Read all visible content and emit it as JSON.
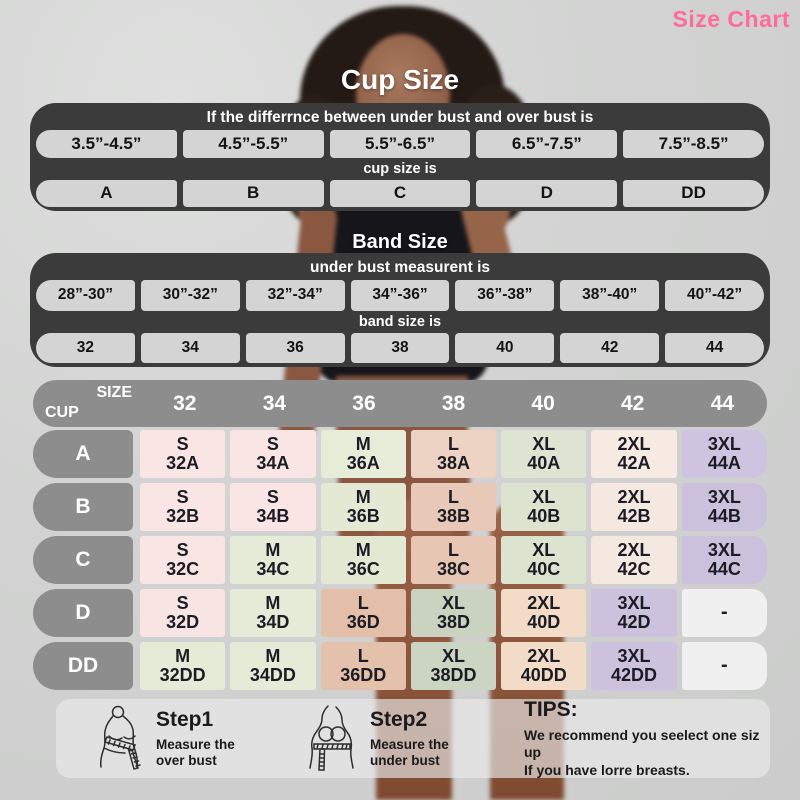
{
  "page": {
    "title": "Size Chart",
    "accent_color": "#ff6b9a",
    "background_color": "#d2d3d2"
  },
  "cup_size_section": {
    "title": "Cup Size",
    "header": "If the differrnce between under bust and over bust is",
    "ranges": [
      "3.5”-4.5”",
      "4.5”-5.5”",
      "5.5”-6.5”",
      "6.5”-7.5”",
      "7.5”-8.5”"
    ],
    "subheader": "cup size is",
    "cups": [
      "A",
      "B",
      "C",
      "D",
      "DD"
    ]
  },
  "band_size_section": {
    "title": "Band Size",
    "header": "under bust measurent is",
    "ranges": [
      "28”-30”",
      "30”-32”",
      "32”-34”",
      "34”-36”",
      "36”-38”",
      "38”-40”",
      "40”-42”"
    ],
    "subheader": "band size is",
    "bands": [
      "32",
      "34",
      "36",
      "38",
      "40",
      "42",
      "44"
    ]
  },
  "size_grid": {
    "corner": {
      "top": "SIZE",
      "bottom": "CUP"
    },
    "columns": [
      "32",
      "34",
      "36",
      "38",
      "40",
      "42",
      "44"
    ],
    "rows": [
      {
        "cup": "A",
        "cells": [
          {
            "size": "S",
            "code": "32A",
            "color": "#f9e6e4"
          },
          {
            "size": "S",
            "code": "34A",
            "color": "#f9e6e4"
          },
          {
            "size": "M",
            "code": "36A",
            "color": "#e7ecd9"
          },
          {
            "size": "L",
            "code": "38A",
            "color": "#ecd3c4"
          },
          {
            "size": "XL",
            "code": "40A",
            "color": "#dde5d2"
          },
          {
            "size": "2XL",
            "code": "42A",
            "color": "#f6eae3"
          },
          {
            "size": "3XL",
            "code": "44A",
            "color": "#cfc4e0"
          }
        ]
      },
      {
        "cup": "B",
        "cells": [
          {
            "size": "S",
            "code": "32B",
            "color": "#f9e6e4"
          },
          {
            "size": "S",
            "code": "34B",
            "color": "#f9e6e4"
          },
          {
            "size": "M",
            "code": "36B",
            "color": "#e4e9d4"
          },
          {
            "size": "L",
            "code": "38B",
            "color": "#e8c9b8"
          },
          {
            "size": "XL",
            "code": "40B",
            "color": "#dce4d0"
          },
          {
            "size": "2XL",
            "code": "42B",
            "color": "#f5e8e0"
          },
          {
            "size": "3XL",
            "code": "44B",
            "color": "#ccc1dd"
          }
        ]
      },
      {
        "cup": "C",
        "cells": [
          {
            "size": "S",
            "code": "32C",
            "color": "#f9e6e4"
          },
          {
            "size": "M",
            "code": "34C",
            "color": "#e6ebd7"
          },
          {
            "size": "M",
            "code": "36C",
            "color": "#e2e8d2"
          },
          {
            "size": "L",
            "code": "38C",
            "color": "#e7c6b4"
          },
          {
            "size": "XL",
            "code": "40C",
            "color": "#dce4d0"
          },
          {
            "size": "2XL",
            "code": "42C",
            "color": "#f5e8e0"
          },
          {
            "size": "3XL",
            "code": "44C",
            "color": "#ccc1dd"
          }
        ]
      },
      {
        "cup": "D",
        "cells": [
          {
            "size": "S",
            "code": "32D",
            "color": "#f8e4e2"
          },
          {
            "size": "M",
            "code": "34D",
            "color": "#e6ebd7"
          },
          {
            "size": "L",
            "code": "36D",
            "color": "#e3bfa9"
          },
          {
            "size": "XL",
            "code": "38D",
            "color": "#c9d3c0"
          },
          {
            "size": "2XL",
            "code": "40D",
            "color": "#f2dcc8"
          },
          {
            "size": "3XL",
            "code": "42D",
            "color": "#cdc2de"
          },
          {
            "size": "-",
            "code": "",
            "color": "#f0f0f0"
          }
        ]
      },
      {
        "cup": "DD",
        "cells": [
          {
            "size": "M",
            "code": "32DD",
            "color": "#e6ebd7"
          },
          {
            "size": "M",
            "code": "34DD",
            "color": "#e6ebd7"
          },
          {
            "size": "L",
            "code": "36DD",
            "color": "#e4c1ab"
          },
          {
            "size": "XL",
            "code": "38DD",
            "color": "#ccd5c2"
          },
          {
            "size": "2XL",
            "code": "40DD",
            "color": "#f2dcc8"
          },
          {
            "size": "3XL",
            "code": "42DD",
            "color": "#cdc2de"
          },
          {
            "size": "-",
            "code": "",
            "color": "#f0f0f0"
          }
        ]
      }
    ]
  },
  "footer": {
    "step1": {
      "title": "Step1",
      "lines": [
        "Measure the",
        "over bust"
      ]
    },
    "step2": {
      "title": "Step2",
      "lines": [
        "Measure the",
        "under bust"
      ]
    },
    "tips": {
      "title": "TIPS:",
      "lines": [
        "We recommend you seelect one siz up",
        "If you have lorre breasts."
      ]
    }
  },
  "icons": {
    "step1": "measure-over-bust-icon",
    "step2": "measure-under-bust-icon"
  },
  "chart_data": [
    {
      "type": "table",
      "title": "Cup Size",
      "header": "If the differrnce between under bust and over bust is",
      "columns": [
        "3.5”-4.5”",
        "4.5”-5.5”",
        "5.5”-6.5”",
        "6.5”-7.5”",
        "7.5”-8.5”"
      ],
      "row_label": "cup size is",
      "values": [
        "A",
        "B",
        "C",
        "D",
        "DD"
      ]
    },
    {
      "type": "table",
      "title": "Band Size",
      "header": "under bust measurent is",
      "columns": [
        "28”-30”",
        "30”-32”",
        "32”-34”",
        "34”-36”",
        "36”-38”",
        "38”-40”",
        "40”-42”"
      ],
      "row_label": "band size is",
      "values": [
        "32",
        "34",
        "36",
        "38",
        "40",
        "42",
        "44"
      ]
    },
    {
      "type": "table",
      "title": "Size by band and cup",
      "columns": [
        "32",
        "34",
        "36",
        "38",
        "40",
        "42",
        "44"
      ],
      "rows": [
        {
          "cup": "A",
          "sizes": [
            "S 32A",
            "S 34A",
            "M 36A",
            "L 38A",
            "XL 40A",
            "2XL 42A",
            "3XL 44A"
          ]
        },
        {
          "cup": "B",
          "sizes": [
            "S 32B",
            "S 34B",
            "M 36B",
            "L 38B",
            "XL 40B",
            "2XL 42B",
            "3XL 44B"
          ]
        },
        {
          "cup": "C",
          "sizes": [
            "S 32C",
            "M 34C",
            "M 36C",
            "L 38C",
            "XL 40C",
            "2XL 42C",
            "3XL 44C"
          ]
        },
        {
          "cup": "D",
          "sizes": [
            "S 32D",
            "M 34D",
            "L 36D",
            "XL 38D",
            "2XL 40D",
            "3XL 42D",
            "-"
          ]
        },
        {
          "cup": "DD",
          "sizes": [
            "M 32DD",
            "M 34DD",
            "L 36DD",
            "XL 38DD",
            "2XL 40DD",
            "3XL 42DD",
            "-"
          ]
        }
      ]
    }
  ]
}
